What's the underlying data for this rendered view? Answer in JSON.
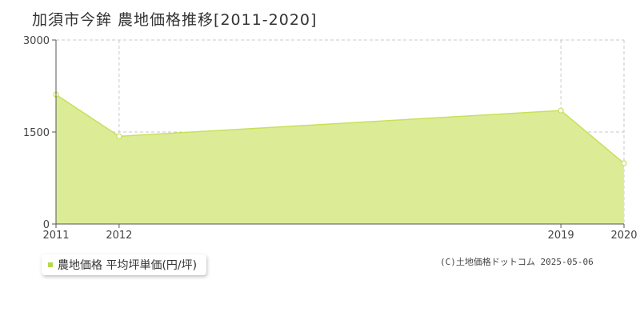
{
  "title": "加須市今鉾 農地価格推移[2011-2020]",
  "legend": {
    "label": "農地価格 平均坪単価(円/坪)"
  },
  "copyright": "(C)土地価格ドットコム 2025-05-06",
  "colors": {
    "fill": "#dcec96",
    "line": "#c8e05a",
    "marker_fill": "#ffffff",
    "axis": "#555555",
    "grid": "#c8c8c8",
    "legend_swatch": "#b8d84a"
  },
  "chart_data": {
    "type": "area",
    "x": [
      "2011",
      "2012",
      "2019",
      "2020"
    ],
    "series": [
      {
        "name": "農地価格 平均坪単価(円/坪)",
        "values": [
          2110,
          1430,
          1850,
          990
        ]
      }
    ],
    "yticks": [
      "0",
      "1500",
      "3000"
    ],
    "ylim": [
      0,
      3000
    ],
    "grid": true
  }
}
